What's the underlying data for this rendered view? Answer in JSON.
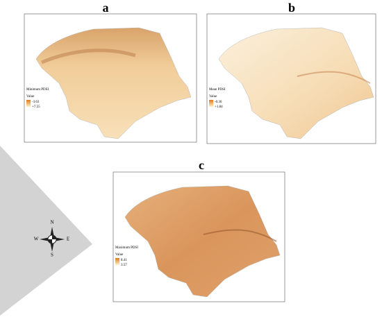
{
  "panels": [
    {
      "label": "a",
      "legend_title": "Minimum PDSI",
      "legend_heading": "Value",
      "legend_high": "-3.63",
      "legend_low": "+7.55"
    },
    {
      "label": "b",
      "legend_title": "Mean PDSI",
      "legend_heading": "Value",
      "legend_high": "-0.36",
      "legend_low": "+1.84"
    },
    {
      "label": "c",
      "legend_title": "Maximum PDSI",
      "legend_heading": "Value",
      "legend_high": "8.41",
      "legend_low": "3.57"
    }
  ],
  "compass": {
    "north": "N",
    "south": "S",
    "east": "E",
    "west": "W"
  }
}
